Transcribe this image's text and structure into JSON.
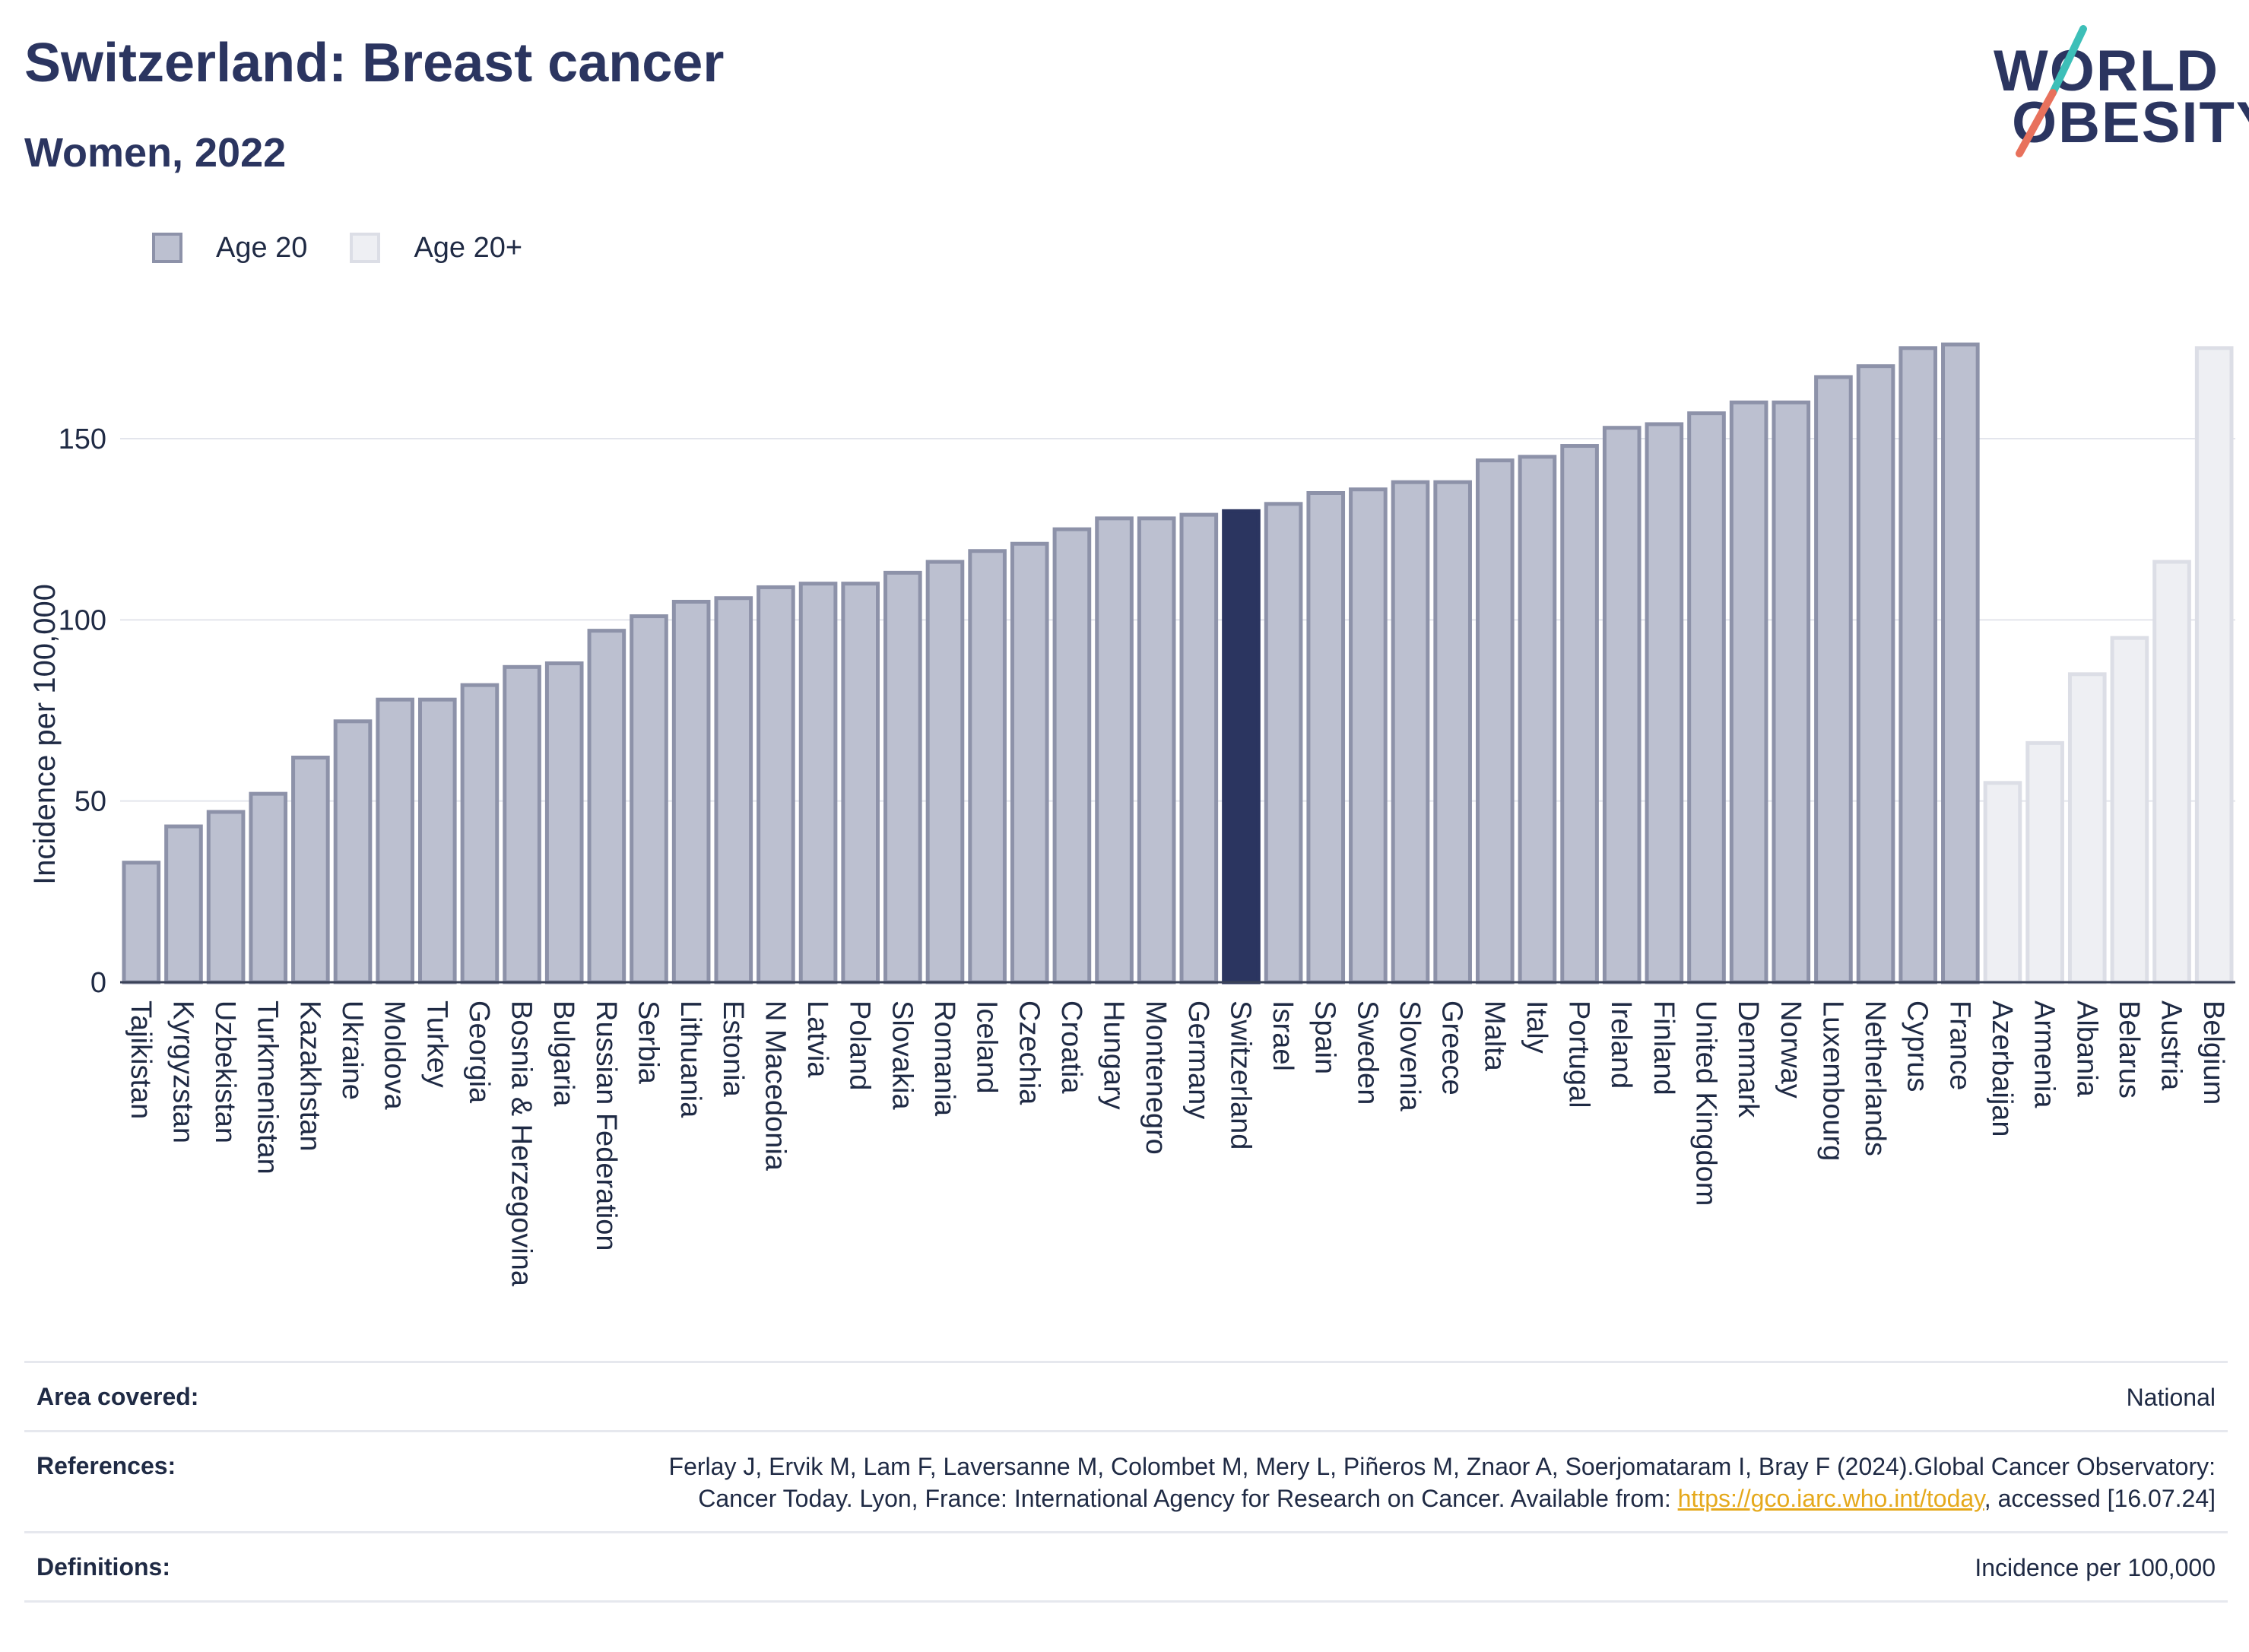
{
  "header": {
    "title": "Switzerland: Breast cancer",
    "subtitle": "Women, 2022"
  },
  "logo": {
    "line1": "WORLD",
    "line2": "OBESITY"
  },
  "legend": {
    "age20": "Age 20",
    "age20plus": "Age 20+"
  },
  "colors": {
    "age20_fill": "#bcc0d0",
    "age20_stroke": "#8d92a9",
    "age20plus_fill": "#eeeff3",
    "age20plus_stroke": "#dcdee6",
    "highlight": "#2b3560",
    "logo_teal": "#3dbfb8",
    "logo_coral": "#e8715c",
    "link": "#e5a91c"
  },
  "chart_data": {
    "type": "bar",
    "ylabel": "Incidence per 100,000",
    "xlabel": "",
    "ylim": [
      0,
      180
    ],
    "yticks": [
      0,
      50,
      100,
      150
    ],
    "grid": true,
    "legend_position": "top-left",
    "highlight": "Switzerland",
    "categories": [
      "Tajikistan",
      "Kyrgyzstan",
      "Uzbekistan",
      "Turkmenistan",
      "Kazakhstan",
      "Ukraine",
      "Moldova",
      "Turkey",
      "Georgia",
      "Bosnia & Herzegovina",
      "Bulgaria",
      "Russian Federation",
      "Serbia",
      "Lithuania",
      "Estonia",
      "N Macedonia",
      "Latvia",
      "Poland",
      "Slovakia",
      "Romania",
      "Iceland",
      "Czechia",
      "Croatia",
      "Hungary",
      "Montenegro",
      "Germany",
      "Switzerland",
      "Israel",
      "Spain",
      "Sweden",
      "Slovenia",
      "Greece",
      "Malta",
      "Italy",
      "Portugal",
      "Ireland",
      "Finland",
      "United Kingdom",
      "Denmark",
      "Norway",
      "Luxembourg",
      "Netherlands",
      "Cyprus",
      "France",
      "Azerbaijan",
      "Armenia",
      "Albania",
      "Belarus",
      "Austria",
      "Belgium"
    ],
    "series": [
      {
        "name": "Age 20",
        "values": [
          33,
          43,
          47,
          52,
          62,
          72,
          78,
          78,
          82,
          87,
          88,
          97,
          101,
          105,
          106,
          109,
          110,
          110,
          113,
          116,
          119,
          121,
          125,
          128,
          128,
          129,
          130,
          132,
          135,
          136,
          138,
          138,
          144,
          145,
          148,
          153,
          154,
          157,
          160,
          160,
          167,
          170,
          175,
          176,
          null,
          null,
          null,
          null,
          null,
          null
        ]
      },
      {
        "name": "Age 20+",
        "values": [
          null,
          null,
          null,
          null,
          null,
          null,
          null,
          null,
          null,
          null,
          null,
          null,
          null,
          null,
          null,
          null,
          null,
          null,
          null,
          null,
          null,
          null,
          null,
          null,
          null,
          null,
          null,
          null,
          null,
          null,
          null,
          null,
          null,
          null,
          null,
          null,
          null,
          null,
          null,
          null,
          null,
          null,
          null,
          null,
          55,
          66,
          85,
          95,
          116,
          175
        ]
      }
    ]
  },
  "footer": {
    "area_label": "Area covered:",
    "area_value": "National",
    "references_label": "References:",
    "references_text": "Ferlay J, Ervik M, Lam F, Laversanne M, Colombet M, Mery L, Piñeros M, Znaor A, Soerjomataram I, Bray F (2024).Global Cancer Observatory: Cancer Today. Lyon, France: International Agency for Research on Cancer. Available from: ",
    "references_link": "https://gco.iarc.who.int/today",
    "references_tail": ", accessed [16.07.24]",
    "definitions_label": "Definitions:",
    "definitions_value": "Incidence per 100,000"
  }
}
